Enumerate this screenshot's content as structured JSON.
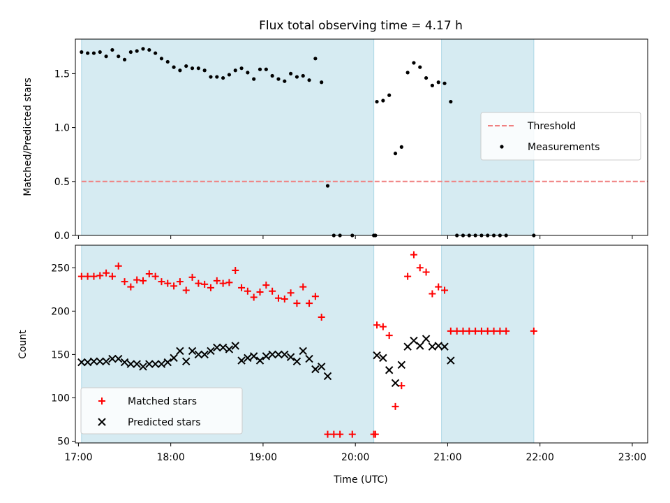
{
  "chart_data": [
    {
      "type": "scatter",
      "title": "Flux total observing time = 4.17 h",
      "xlabel": "",
      "ylabel": "Matched/Predicted stars",
      "xlim": [
        "16:58",
        "23:10"
      ],
      "ylim": [
        0,
        1.82
      ],
      "xticks": [
        "17:00",
        "18:00",
        "19:00",
        "20:00",
        "21:00",
        "22:00",
        "23:00"
      ],
      "yticks": [
        0.0,
        0.5,
        1.0,
        1.5
      ],
      "ytick_labels": [
        "0.0",
        "0.5",
        "1.0",
        "1.5"
      ],
      "legend_position": "center-right",
      "observing_windows": [
        [
          "17:02",
          "20:12"
        ],
        [
          "20:56",
          "21:56"
        ]
      ],
      "window_color": "#add8e6",
      "threshold": {
        "name": "Threshold",
        "value": 0.5,
        "x": [
          "17:02",
          "23:52"
        ],
        "color": "#f08080",
        "style": "dashed"
      },
      "series": [
        {
          "name": "Measurements",
          "marker": "dot",
          "color": "#000000",
          "points": [
            [
              "17:02",
              1.7
            ],
            [
              "17:06",
              1.69
            ],
            [
              "17:10",
              1.69
            ],
            [
              "17:14",
              1.7
            ],
            [
              "17:18",
              1.66
            ],
            [
              "17:22",
              1.72
            ],
            [
              "17:26",
              1.66
            ],
            [
              "17:30",
              1.63
            ],
            [
              "17:34",
              1.7
            ],
            [
              "17:38",
              1.71
            ],
            [
              "17:42",
              1.73
            ],
            [
              "17:46",
              1.72
            ],
            [
              "17:50",
              1.69
            ],
            [
              "17:54",
              1.64
            ],
            [
              "17:58",
              1.61
            ],
            [
              "18:02",
              1.56
            ],
            [
              "18:06",
              1.53
            ],
            [
              "18:10",
              1.57
            ],
            [
              "18:14",
              1.55
            ],
            [
              "18:18",
              1.55
            ],
            [
              "18:22",
              1.53
            ],
            [
              "18:26",
              1.47
            ],
            [
              "18:30",
              1.47
            ],
            [
              "18:34",
              1.46
            ],
            [
              "18:38",
              1.49
            ],
            [
              "18:42",
              1.53
            ],
            [
              "18:46",
              1.55
            ],
            [
              "18:50",
              1.51
            ],
            [
              "18:54",
              1.45
            ],
            [
              "18:58",
              1.54
            ],
            [
              "19:02",
              1.54
            ],
            [
              "19:06",
              1.48
            ],
            [
              "19:10",
              1.45
            ],
            [
              "19:14",
              1.43
            ],
            [
              "19:18",
              1.5
            ],
            [
              "19:22",
              1.47
            ],
            [
              "19:26",
              1.48
            ],
            [
              "19:30",
              1.44
            ],
            [
              "19:34",
              1.64
            ],
            [
              "19:38",
              1.42
            ],
            [
              "19:42",
              0.46
            ],
            [
              "19:46",
              0.0
            ],
            [
              "19:50",
              0.0
            ],
            [
              "19:58",
              0.0
            ],
            [
              "20:12",
              0.0
            ],
            [
              "20:13",
              0.0
            ],
            [
              "20:14",
              1.24
            ],
            [
              "20:18",
              1.25
            ],
            [
              "20:22",
              1.3
            ],
            [
              "20:26",
              0.76
            ],
            [
              "20:30",
              0.82
            ],
            [
              "20:34",
              1.51
            ],
            [
              "20:38",
              1.6
            ],
            [
              "20:42",
              1.56
            ],
            [
              "20:46",
              1.46
            ],
            [
              "20:50",
              1.39
            ],
            [
              "20:54",
              1.42
            ],
            [
              "20:58",
              1.41
            ],
            [
              "21:02",
              1.24
            ],
            [
              "21:06",
              0.0
            ],
            [
              "21:10",
              0.0
            ],
            [
              "21:14",
              0.0
            ],
            [
              "21:18",
              0.0
            ],
            [
              "21:22",
              0.0
            ],
            [
              "21:26",
              0.0
            ],
            [
              "21:30",
              0.0
            ],
            [
              "21:34",
              0.0
            ],
            [
              "21:38",
              0.0
            ],
            [
              "21:56",
              0.0
            ]
          ]
        }
      ]
    },
    {
      "type": "scatter",
      "title": "",
      "xlabel": "Time (UTC)",
      "ylabel": "Count",
      "xlim": [
        "16:58",
        "23:10"
      ],
      "ylim": [
        48,
        276
      ],
      "xticks": [
        "17:00",
        "18:00",
        "19:00",
        "20:00",
        "21:00",
        "22:00",
        "23:00"
      ],
      "yticks": [
        50,
        100,
        150,
        200,
        250
      ],
      "legend_position": "lower-left",
      "observing_windows": [
        [
          "17:02",
          "20:12"
        ],
        [
          "20:56",
          "21:56"
        ]
      ],
      "window_color": "#add8e6",
      "series": [
        {
          "name": "Matched stars",
          "marker": "plus",
          "color": "#ff0000",
          "points": [
            [
              "17:02",
              240
            ],
            [
              "17:06",
              240
            ],
            [
              "17:10",
              240
            ],
            [
              "17:14",
              241
            ],
            [
              "17:18",
              244
            ],
            [
              "17:22",
              240
            ],
            [
              "17:26",
              252
            ],
            [
              "17:30",
              234
            ],
            [
              "17:34",
              228
            ],
            [
              "17:38",
              236
            ],
            [
              "17:42",
              235
            ],
            [
              "17:46",
              243
            ],
            [
              "17:50",
              240
            ],
            [
              "17:54",
              234
            ],
            [
              "17:58",
              232
            ],
            [
              "18:02",
              229
            ],
            [
              "18:06",
              234
            ],
            [
              "18:10",
              224
            ],
            [
              "18:14",
              239
            ],
            [
              "18:18",
              232
            ],
            [
              "18:22",
              231
            ],
            [
              "18:26",
              227
            ],
            [
              "18:30",
              235
            ],
            [
              "18:34",
              232
            ],
            [
              "18:38",
              233
            ],
            [
              "18:42",
              247
            ],
            [
              "18:46",
              227
            ],
            [
              "18:50",
              223
            ],
            [
              "18:54",
              216
            ],
            [
              "18:58",
              222
            ],
            [
              "19:02",
              230
            ],
            [
              "19:06",
              223
            ],
            [
              "19:10",
              215
            ],
            [
              "19:14",
              214
            ],
            [
              "19:18",
              221
            ],
            [
              "19:22",
              209
            ],
            [
              "19:26",
              228
            ],
            [
              "19:30",
              209
            ],
            [
              "19:34",
              217
            ],
            [
              "19:38",
              193
            ],
            [
              "19:42",
              58
            ],
            [
              "19:46",
              58
            ],
            [
              "19:50",
              58
            ],
            [
              "19:58",
              58
            ],
            [
              "20:12",
              58
            ],
            [
              "20:13",
              58
            ],
            [
              "20:14",
              184
            ],
            [
              "20:18",
              182
            ],
            [
              "20:22",
              172
            ],
            [
              "20:26",
              90
            ],
            [
              "20:30",
              114
            ],
            [
              "20:34",
              240
            ],
            [
              "20:38",
              265
            ],
            [
              "20:42",
              250
            ],
            [
              "20:46",
              245
            ],
            [
              "20:50",
              220
            ],
            [
              "20:54",
              228
            ],
            [
              "20:58",
              224
            ],
            [
              "21:02",
              177
            ],
            [
              "21:06",
              177
            ],
            [
              "21:10",
              177
            ],
            [
              "21:14",
              177
            ],
            [
              "21:18",
              177
            ],
            [
              "21:22",
              177
            ],
            [
              "21:26",
              177
            ],
            [
              "21:30",
              177
            ],
            [
              "21:34",
              177
            ],
            [
              "21:38",
              177
            ],
            [
              "21:56",
              177
            ]
          ]
        },
        {
          "name": "Predicted stars",
          "marker": "cross",
          "color": "#000000",
          "points": [
            [
              "17:02",
              141
            ],
            [
              "17:06",
              141
            ],
            [
              "17:10",
              142
            ],
            [
              "17:14",
              142
            ],
            [
              "17:18",
              142
            ],
            [
              "17:22",
              145
            ],
            [
              "17:26",
              145
            ],
            [
              "17:30",
              141
            ],
            [
              "17:34",
              139
            ],
            [
              "17:38",
              139
            ],
            [
              "17:42",
              136
            ],
            [
              "17:46",
              139
            ],
            [
              "17:50",
              139
            ],
            [
              "17:54",
              139
            ],
            [
              "17:58",
              141
            ],
            [
              "18:02",
              146
            ],
            [
              "18:06",
              154
            ],
            [
              "18:10",
              142
            ],
            [
              "18:14",
              154
            ],
            [
              "18:18",
              150
            ],
            [
              "18:22",
              150
            ],
            [
              "18:26",
              154
            ],
            [
              "18:30",
              158
            ],
            [
              "18:34",
              158
            ],
            [
              "18:38",
              156
            ],
            [
              "18:42",
              160
            ],
            [
              "18:46",
              143
            ],
            [
              "18:50",
              146
            ],
            [
              "18:54",
              148
            ],
            [
              "18:58",
              143
            ],
            [
              "19:02",
              148
            ],
            [
              "19:06",
              150
            ],
            [
              "19:10",
              150
            ],
            [
              "19:14",
              150
            ],
            [
              "19:18",
              147
            ],
            [
              "19:22",
              142
            ],
            [
              "19:26",
              154
            ],
            [
              "19:30",
              145
            ],
            [
              "19:34",
              133
            ],
            [
              "19:38",
              136
            ],
            [
              "19:42",
              125
            ],
            [
              "20:14",
              149
            ],
            [
              "20:18",
              146
            ],
            [
              "20:22",
              132
            ],
            [
              "20:26",
              117
            ],
            [
              "20:30",
              138
            ],
            [
              "20:34",
              159
            ],
            [
              "20:38",
              166
            ],
            [
              "20:42",
              160
            ],
            [
              "20:46",
              168
            ],
            [
              "20:50",
              159
            ],
            [
              "20:54",
              160
            ],
            [
              "20:58",
              159
            ],
            [
              "21:02",
              143
            ]
          ]
        }
      ]
    }
  ]
}
